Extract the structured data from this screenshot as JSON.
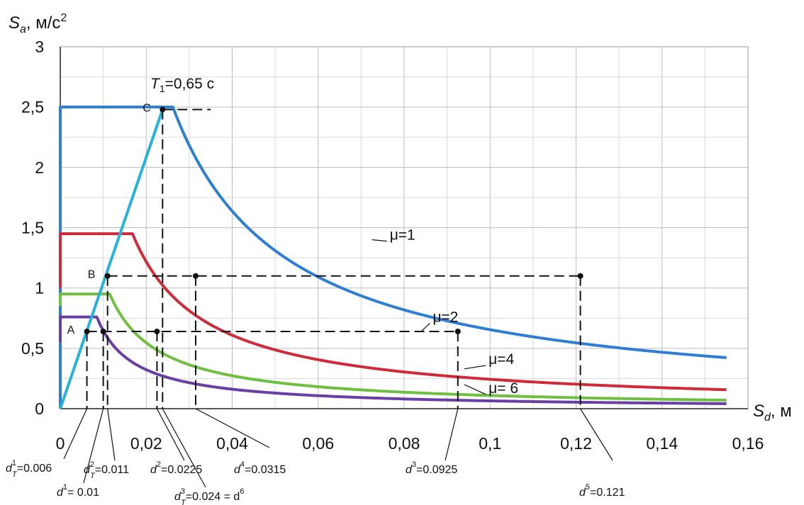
{
  "chart_data": {
    "type": "line",
    "y_axis_title": "S_a, м/с²",
    "x_axis_title": "S_d, м",
    "xlim": [
      0,
      0.16
    ],
    "ylim": [
      0,
      3
    ],
    "x_ticks": [
      0,
      0.02,
      0.04,
      0.06,
      0.08,
      0.1,
      0.12,
      0.14,
      0.16
    ],
    "x_tick_labels": [
      "0",
      "0,02",
      "0,04",
      "0,06",
      "0,08",
      "0,1",
      "0,12",
      "0,14",
      "0,16"
    ],
    "y_ticks": [
      0,
      0.5,
      1,
      1.5,
      2,
      2.5,
      3
    ],
    "y_tick_labels": [
      "0",
      "0,5",
      "1",
      "1,5",
      "2",
      "2,5",
      "3"
    ],
    "grid": true,
    "period_annotation": "T₁=0,65 с",
    "series": [
      {
        "name": "μ=1",
        "color": "#2e7fd4",
        "plateau": 2.5,
        "corner": 0.0262,
        "end": 0.155,
        "start_y": 0.0
      },
      {
        "name": "μ=2",
        "color": "#d02b3a",
        "plateau": 1.45,
        "corner": 0.0168,
        "end": 0.155,
        "start_y": 1.0
      },
      {
        "name": "μ=4",
        "color": "#6fbf40",
        "plateau": 0.95,
        "corner": 0.0115,
        "end": 0.155,
        "start_y": 0.85
      },
      {
        "name": "μ= 6",
        "color": "#6a3fa5",
        "plateau": 0.76,
        "corner": 0.0085,
        "end": 0.155,
        "start_y": 0.55
      }
    ],
    "demand_line": {
      "name": "demand",
      "color": "#26b3d9",
      "x": [
        0,
        0.0238
      ],
      "y": [
        0,
        2.48
      ]
    },
    "points": [
      {
        "label": "C",
        "x": 0.0238,
        "y": 2.48
      },
      {
        "label": "B",
        "x": 0.011,
        "y": 1.1
      },
      {
        "label": "A",
        "x": 0.0062,
        "y": 0.64
      }
    ],
    "marked_points": [
      {
        "x": 0.0238,
        "y": 2.48
      },
      {
        "x": 0.011,
        "y": 1.1
      },
      {
        "x": 0.0315,
        "y": 1.1
      },
      {
        "x": 0.121,
        "y": 1.1
      },
      {
        "x": 0.0062,
        "y": 0.64
      },
      {
        "x": 0.01,
        "y": 0.64
      },
      {
        "x": 0.0225,
        "y": 0.64
      },
      {
        "x": 0.0925,
        "y": 0.64
      }
    ],
    "dashed_levels": [
      {
        "y": 2.48,
        "x_from": 0.0238,
        "x_to": 0.035
      },
      {
        "y": 1.1,
        "x_from": 0.011,
        "x_to": 0.121
      },
      {
        "y": 0.64,
        "x_from": 0.0062,
        "x_to": 0.0925
      }
    ],
    "dashed_verticals": [
      {
        "x": 0.0062,
        "y_top": 0.64
      },
      {
        "x": 0.01,
        "y_top": 0.64
      },
      {
        "x": 0.011,
        "y_top": 1.1
      },
      {
        "x": 0.0225,
        "y_top": 0.64
      },
      {
        "x": 0.0238,
        "y_top": 2.48
      },
      {
        "x": 0.0315,
        "y_top": 1.1
      },
      {
        "x": 0.0925,
        "y_top": 0.64
      },
      {
        "x": 0.121,
        "y_top": 1.1
      }
    ],
    "d_annotations": [
      {
        "sym": "d",
        "sub": "T",
        "sup": "1",
        "value": "=0.006",
        "x": 0.0062
      },
      {
        "sym": "d",
        "sub": "",
        "sup": "1",
        "value": "= 0.01",
        "x": 0.01
      },
      {
        "sym": "d",
        "sub": "T",
        "sup": "2",
        "value": "=0.011",
        "x": 0.011
      },
      {
        "sym": "d",
        "sub": "",
        "sup": "2",
        "value": "=0.0225",
        "x": 0.0225
      },
      {
        "sym": "d",
        "sub": "T",
        "sup": "3",
        "value": "=0.024 = d",
        "extra_sup": "6",
        "x": 0.0238
      },
      {
        "sym": "d",
        "sub": "",
        "sup": "4",
        "value": "=0.0315",
        "x": 0.0315
      },
      {
        "sym": "d",
        "sub": "",
        "sup": "3",
        "value": "=0.0925",
        "x": 0.0925
      },
      {
        "sym": "d",
        "sub": "",
        "sup": "5",
        "value": "=0.121",
        "x": 0.121
      }
    ]
  }
}
